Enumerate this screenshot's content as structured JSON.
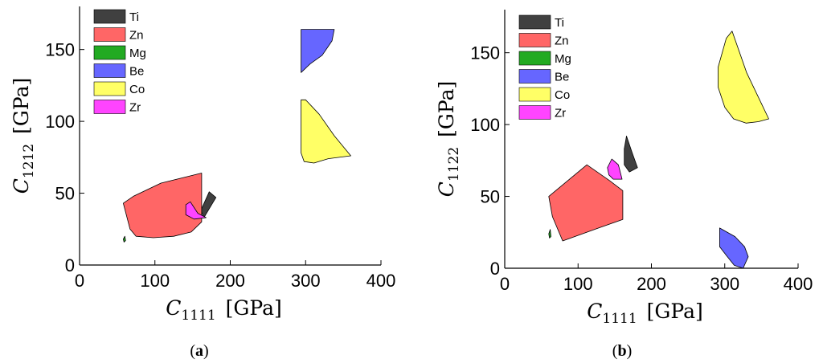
{
  "chart_data": [
    {
      "type": "area",
      "panel_label": {
        "open": "(",
        "letter": "a",
        "close": ")"
      },
      "xlabel": {
        "symbol": "C",
        "sub": "1111",
        "unit": "[GPa]"
      },
      "ylabel": {
        "symbol": "C",
        "sub": "1212",
        "unit": "[GPa]"
      },
      "xlim": [
        0,
        400
      ],
      "ylim": [
        0,
        180
      ],
      "xticks": [
        0,
        100,
        200,
        300,
        400
      ],
      "yticks": [
        0,
        50,
        100,
        150
      ],
      "legend_position": "top-left",
      "series": [
        {
          "name": "Ti",
          "color": "#404040",
          "points": [
            [
              161,
              38
            ],
            [
              172,
              51
            ],
            [
              181,
              47
            ],
            [
              165,
              33
            ]
          ]
        },
        {
          "name": "Zn",
          "color": "#ff6666",
          "points": [
            [
              58,
              43
            ],
            [
              72,
              48
            ],
            [
              108,
              57
            ],
            [
              162,
              64
            ],
            [
              162,
              30
            ],
            [
              148,
              23
            ],
            [
              125,
              20
            ],
            [
              98,
              19
            ],
            [
              75,
              20
            ],
            [
              67,
              25
            ]
          ]
        },
        {
          "name": "Mg",
          "color": "#22aa22",
          "points": [
            [
              58,
              18
            ],
            [
              60,
              20
            ],
            [
              61,
              17
            ],
            [
              59,
              16
            ]
          ]
        },
        {
          "name": "Be",
          "color": "#6666ff",
          "points": [
            [
              294,
              164
            ],
            [
              338,
              164
            ],
            [
              335,
              156
            ],
            [
              322,
              146
            ],
            [
              306,
              140
            ],
            [
              294,
              134
            ]
          ]
        },
        {
          "name": "Co",
          "color": "#ffff66",
          "points": [
            [
              294,
              115
            ],
            [
              300,
              115
            ],
            [
              318,
              105
            ],
            [
              338,
              90
            ],
            [
              360,
              76
            ],
            [
              330,
              74
            ],
            [
              311,
              71
            ],
            [
              298,
              72
            ],
            [
              294,
              78
            ]
          ]
        },
        {
          "name": "Zr",
          "color": "#ff44ff",
          "points": [
            [
              141,
              42
            ],
            [
              147,
              44
            ],
            [
              157,
              36
            ],
            [
              168,
              33
            ],
            [
              152,
              32
            ],
            [
              141,
              35
            ]
          ]
        }
      ]
    },
    {
      "type": "area",
      "panel_label": {
        "open": "(",
        "letter": "b",
        "close": ")"
      },
      "xlabel": {
        "symbol": "C",
        "sub": "1111",
        "unit": "[GPa]"
      },
      "ylabel": {
        "symbol": "C",
        "sub": "1122",
        "unit": "[GPa]"
      },
      "xlim": [
        0,
        400
      ],
      "ylim": [
        0,
        180
      ],
      "xticks": [
        0,
        100,
        200,
        300,
        400
      ],
      "yticks": [
        0,
        50,
        100,
        150
      ],
      "legend_position": "top-left",
      "series": [
        {
          "name": "Ti",
          "color": "#404040",
          "points": [
            [
              163,
              83
            ],
            [
              166,
              92
            ],
            [
              174,
              80
            ],
            [
              181,
              70
            ],
            [
              170,
              67
            ],
            [
              163,
              72
            ]
          ]
        },
        {
          "name": "Zn",
          "color": "#ff6666",
          "points": [
            [
              60,
              50
            ],
            [
              112,
              72
            ],
            [
              143,
              61
            ],
            [
              161,
              54
            ],
            [
              161,
              34
            ],
            [
              128,
              28
            ],
            [
              79,
              19
            ],
            [
              65,
              36
            ]
          ]
        },
        {
          "name": "Mg",
          "color": "#22aa22",
          "points": [
            [
              60,
              24
            ],
            [
              62,
              27
            ],
            [
              63,
              22
            ],
            [
              61,
              21
            ]
          ]
        },
        {
          "name": "Be",
          "color": "#6666ff",
          "points": [
            [
              293,
              28
            ],
            [
              314,
              22
            ],
            [
              327,
              15
            ],
            [
              332,
              8
            ],
            [
              325,
              0
            ],
            [
              313,
              2
            ],
            [
              302,
              9
            ],
            [
              293,
              15
            ]
          ]
        },
        {
          "name": "Co",
          "color": "#ffff66",
          "points": [
            [
              291,
              140
            ],
            [
              302,
              160
            ],
            [
              310,
              165
            ],
            [
              330,
              136
            ],
            [
              360,
              104
            ],
            [
              346,
              102
            ],
            [
              329,
              101
            ],
            [
              312,
              104
            ],
            [
              300,
              112
            ],
            [
              291,
              126
            ]
          ]
        },
        {
          "name": "Zr",
          "color": "#ff44ff",
          "points": [
            [
              140,
              70
            ],
            [
              146,
              76
            ],
            [
              155,
              72
            ],
            [
              160,
              62
            ],
            [
              148,
              62
            ],
            [
              142,
              65
            ]
          ]
        }
      ]
    }
  ]
}
